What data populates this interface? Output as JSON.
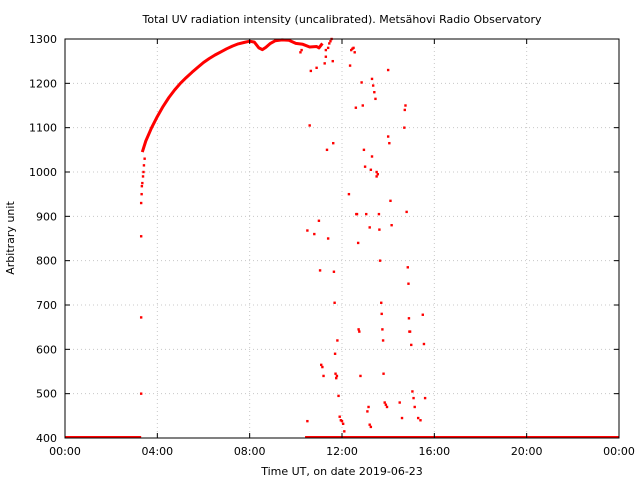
{
  "chart_data": {
    "type": "scatter",
    "title": "Total UV radiation intensity (uncalibrated). Metsähovi Radio Observatory",
    "xlabel": "Time UT, on date 2019-06-23",
    "ylabel": "Arbitrary unit",
    "xlim": [
      0,
      24
    ],
    "ylim": [
      400,
      1300
    ],
    "x_ticks": [
      0,
      4,
      8,
      12,
      16,
      20,
      24
    ],
    "x_tick_labels": [
      "00:00",
      "04:00",
      "08:00",
      "12:00",
      "16:00",
      "20:00",
      "00:00"
    ],
    "y_ticks": [
      400,
      500,
      600,
      700,
      800,
      900,
      1000,
      1100,
      1200,
      1300
    ],
    "y_tick_labels": [
      "400",
      "500",
      "600",
      "700",
      "800",
      "900",
      "1000",
      "1100",
      "1200",
      "1300"
    ],
    "grid": true,
    "color": "#ff0000",
    "curve": [
      [
        3.35,
        1045
      ],
      [
        3.5,
        1070
      ],
      [
        3.75,
        1100
      ],
      [
        4.0,
        1125
      ],
      [
        4.25,
        1148
      ],
      [
        4.5,
        1168
      ],
      [
        4.75,
        1185
      ],
      [
        5.0,
        1200
      ],
      [
        5.25,
        1213
      ],
      [
        5.5,
        1225
      ],
      [
        5.75,
        1236
      ],
      [
        6.0,
        1247
      ],
      [
        6.25,
        1256
      ],
      [
        6.5,
        1264
      ],
      [
        6.75,
        1271
      ],
      [
        7.0,
        1278
      ],
      [
        7.25,
        1284
      ],
      [
        7.5,
        1289
      ],
      [
        7.75,
        1292
      ],
      [
        8.0,
        1295
      ],
      [
        8.2,
        1293
      ],
      [
        8.4,
        1280
      ],
      [
        8.55,
        1276
      ],
      [
        8.7,
        1281
      ],
      [
        8.9,
        1290
      ],
      [
        9.1,
        1296
      ],
      [
        9.4,
        1298
      ],
      [
        9.7,
        1297
      ],
      [
        10.0,
        1290
      ],
      [
        10.3,
        1288
      ],
      [
        10.6,
        1282
      ],
      [
        10.9,
        1283
      ],
      [
        11.0,
        1280
      ],
      [
        11.15,
        1290
      ]
    ],
    "points": [
      [
        3.3,
        500
      ],
      [
        3.3,
        672
      ],
      [
        3.3,
        855
      ],
      [
        3.3,
        930
      ],
      [
        3.32,
        950
      ],
      [
        3.33,
        968
      ],
      [
        3.35,
        975
      ],
      [
        3.38,
        990
      ],
      [
        3.4,
        1000
      ],
      [
        3.42,
        1015
      ],
      [
        3.45,
        1030
      ],
      [
        10.5,
        438
      ],
      [
        10.5,
        868
      ],
      [
        10.6,
        1105
      ],
      [
        10.65,
        1228
      ],
      [
        10.8,
        860
      ],
      [
        10.9,
        1235
      ],
      [
        11.0,
        890
      ],
      [
        11.05,
        778
      ],
      [
        11.1,
        565
      ],
      [
        11.15,
        560
      ],
      [
        11.2,
        540
      ],
      [
        11.25,
        1245
      ],
      [
        11.3,
        1260
      ],
      [
        11.3,
        1275
      ],
      [
        11.4,
        1280
      ],
      [
        11.45,
        1290
      ],
      [
        11.5,
        1295
      ],
      [
        11.55,
        1300
      ],
      [
        11.6,
        1250
      ],
      [
        11.62,
        1065
      ],
      [
        11.65,
        775
      ],
      [
        11.68,
        705
      ],
      [
        11.7,
        590
      ],
      [
        11.72,
        545
      ],
      [
        11.75,
        535
      ],
      [
        11.78,
        540
      ],
      [
        11.8,
        620
      ],
      [
        11.85,
        495
      ],
      [
        11.9,
        448
      ],
      [
        11.95,
        440
      ],
      [
        12.0,
        438
      ],
      [
        12.05,
        432
      ],
      [
        12.1,
        415
      ],
      [
        12.3,
        950
      ],
      [
        12.35,
        1240
      ],
      [
        12.4,
        1275
      ],
      [
        12.45,
        1278
      ],
      [
        12.5,
        1280
      ],
      [
        12.55,
        1270
      ],
      [
        12.6,
        1145
      ],
      [
        12.62,
        905
      ],
      [
        12.65,
        905
      ],
      [
        12.7,
        840
      ],
      [
        12.72,
        645
      ],
      [
        12.75,
        640
      ],
      [
        12.8,
        540
      ],
      [
        12.85,
        1202
      ],
      [
        12.9,
        1150
      ],
      [
        12.95,
        1050
      ],
      [
        13.0,
        1012
      ],
      [
        13.05,
        905
      ],
      [
        13.1,
        460
      ],
      [
        13.15,
        470
      ],
      [
        13.2,
        430
      ],
      [
        13.25,
        425
      ],
      [
        13.3,
        1210
      ],
      [
        13.35,
        1195
      ],
      [
        13.4,
        1180
      ],
      [
        13.45,
        1165
      ],
      [
        13.5,
        1000
      ],
      [
        13.5,
        990
      ],
      [
        13.55,
        995
      ],
      [
        13.6,
        905
      ],
      [
        13.62,
        870
      ],
      [
        13.65,
        800
      ],
      [
        13.7,
        705
      ],
      [
        13.72,
        680
      ],
      [
        13.75,
        645
      ],
      [
        13.78,
        620
      ],
      [
        13.8,
        545
      ],
      [
        13.85,
        480
      ],
      [
        13.9,
        475
      ],
      [
        13.95,
        470
      ],
      [
        14.0,
        1230
      ],
      [
        14.0,
        1080
      ],
      [
        14.05,
        1065
      ],
      [
        14.1,
        935
      ],
      [
        14.15,
        880
      ],
      [
        14.5,
        480
      ],
      [
        14.6,
        445
      ],
      [
        14.7,
        1100
      ],
      [
        14.72,
        1140
      ],
      [
        14.75,
        1150
      ],
      [
        14.8,
        910
      ],
      [
        14.85,
        785
      ],
      [
        14.88,
        748
      ],
      [
        14.9,
        670
      ],
      [
        14.92,
        640
      ],
      [
        14.95,
        640
      ],
      [
        15.0,
        610
      ],
      [
        15.05,
        505
      ],
      [
        15.1,
        490
      ],
      [
        15.15,
        470
      ],
      [
        15.3,
        445
      ],
      [
        15.4,
        440
      ],
      [
        15.5,
        678
      ],
      [
        15.55,
        612
      ],
      [
        15.6,
        490
      ],
      [
        10.2,
        1270
      ],
      [
        10.25,
        1275
      ],
      [
        11.35,
        1050
      ],
      [
        11.4,
        850
      ],
      [
        13.2,
        875
      ],
      [
        13.25,
        1005
      ],
      [
        13.3,
        1035
      ]
    ],
    "baseline": {
      "value": 400,
      "ranges": [
        [
          0,
          3.3
        ],
        [
          10.4,
          24
        ]
      ]
    }
  }
}
